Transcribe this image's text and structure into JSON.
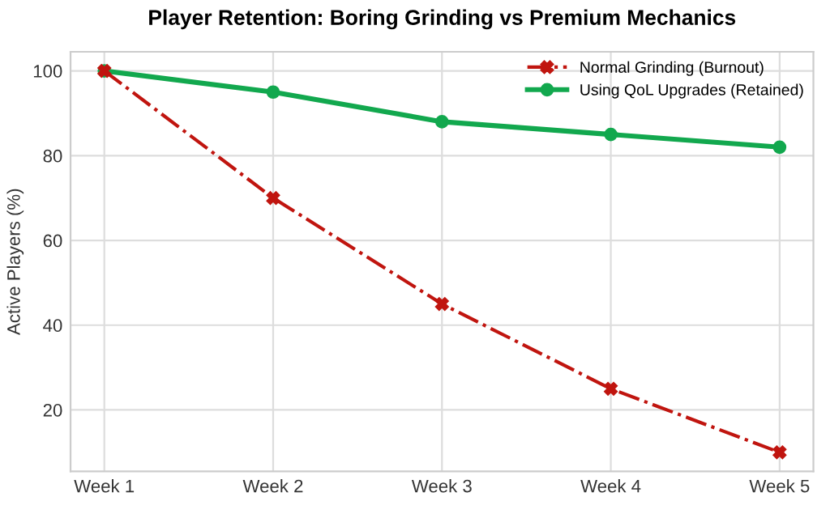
{
  "chart_data": {
    "type": "line",
    "title": "Player Retention: Boring Grinding vs Premium Mechanics",
    "ylabel": "Active Players (%)",
    "categories": [
      "Week 1",
      "Week 2",
      "Week 3",
      "Week 4",
      "Week 5"
    ],
    "series": [
      {
        "name": "Normal Grinding (Burnout)",
        "color": "#c0150f",
        "values": [
          100,
          70,
          45,
          25,
          10
        ],
        "marker": "cross",
        "line_style": "dashdot"
      },
      {
        "name": "Using QoL Upgrades (Retained)",
        "color": "#12a84e",
        "values": [
          100,
          95,
          88,
          85,
          82
        ],
        "marker": "circle",
        "line_style": "solid"
      }
    ],
    "ylim": [
      5.5,
      104.5
    ],
    "yticks": [
      20,
      40,
      60,
      80,
      100
    ],
    "grid": true,
    "legend": "top right"
  }
}
